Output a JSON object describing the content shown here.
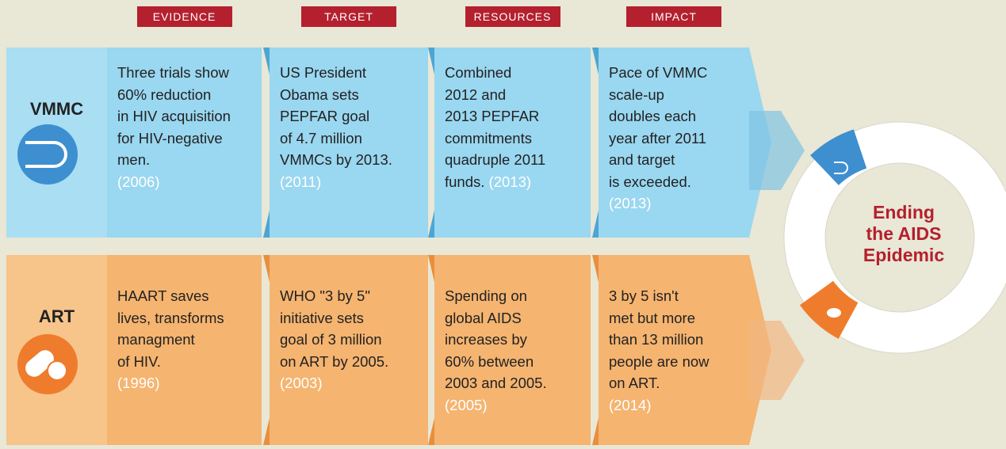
{
  "headers": [
    "EVIDENCE",
    "TARGET",
    "RESOURCES",
    "IMPACT"
  ],
  "rows": [
    {
      "label": "VMMC",
      "cells": [
        {
          "lines": [
            "Three trials show",
            "60% reduction",
            "in HIV acquisition",
            "for HIV-negative",
            "men."
          ],
          "year": "(2006)"
        },
        {
          "lines": [
            "US President",
            "Obama sets",
            "PEPFAR goal",
            "of 4.7 million",
            "VMMCs by 2013."
          ],
          "year": "(2011)"
        },
        {
          "lines": [
            "Combined",
            "2012 and",
            "2013 PEPFAR",
            "commitments",
            "quadruple 2011",
            "funds."
          ],
          "year": "(2013)",
          "year_inline": true
        },
        {
          "lines": [
            "Pace of VMMC",
            "scale-up",
            "doubles each",
            "year after 2011",
            "and target",
            "is exceeded."
          ],
          "year": "(2013)"
        }
      ]
    },
    {
      "label": "ART",
      "cells": [
        {
          "lines": [
            "HAART saves",
            "lives, transforms",
            "managment",
            "of HIV."
          ],
          "year": "(1996)"
        },
        {
          "lines": [
            "WHO \"3 by 5\"",
            "initiative sets",
            "goal of 3 million",
            "on ART by 2005."
          ],
          "year": "(2003)"
        },
        {
          "lines": [
            "Spending on",
            "global AIDS",
            "increases by",
            "60% between",
            "2003 and 2005."
          ],
          "year": "(2005)"
        },
        {
          "lines": [
            "3 by 5 isn't",
            "met but more",
            "than 13 million",
            "people are now",
            "on ART."
          ],
          "year": "(2014)"
        }
      ]
    }
  ],
  "goal": [
    "Ending",
    "the AIDS",
    "Epidemic"
  ]
}
